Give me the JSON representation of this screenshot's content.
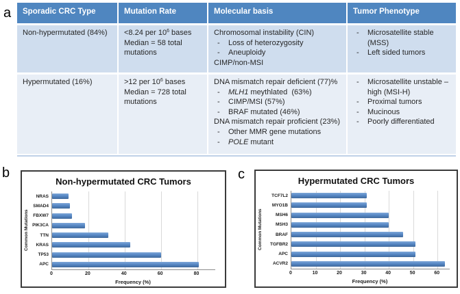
{
  "panels": {
    "a": "a",
    "b": "b",
    "c": "c"
  },
  "colors": {
    "table_header_bg": "#4f86c0",
    "table_header_text": "#ffffff",
    "table_row1_bg": "#cfddee",
    "table_row2_bg": "#e8eef6",
    "bar_blue": "#5586c3"
  },
  "table": {
    "bullet_char": "-",
    "headers": [
      "Sporadic CRC Type",
      "Mutation Rate",
      "Molecular basis",
      "Tumor Phenotype"
    ],
    "rows": [
      {
        "cells": [
          {
            "lines": [
              {
                "segs": [
                  {
                    "t": "Non-hypermutated (84%)"
                  }
                ]
              }
            ]
          },
          {
            "lines": [
              {
                "segs": [
                  {
                    "t": "<8.24 per 10"
                  },
                  {
                    "t": "6",
                    "sup": true
                  },
                  {
                    "t": " bases"
                  }
                ]
              },
              {
                "segs": [
                  {
                    "t": "Median = 58 total mutations"
                  }
                ]
              }
            ]
          },
          {
            "lines": [
              {
                "segs": [
                  {
                    "t": "Chromosomal instability (CIN)"
                  }
                ]
              },
              {
                "bullet": true,
                "segs": [
                  {
                    "t": "Loss of heterozygosity"
                  }
                ]
              },
              {
                "bullet": true,
                "segs": [
                  {
                    "t": "Aneuploidy"
                  }
                ]
              },
              {
                "segs": [
                  {
                    "t": "CIMP/non-MSI"
                  }
                ]
              }
            ]
          },
          {
            "lines": [
              {
                "bullet": true,
                "segs": [
                  {
                    "t": "Microsatellite stable (MSS)"
                  }
                ]
              },
              {
                "bullet": true,
                "segs": [
                  {
                    "t": "Left sided tumors"
                  }
                ]
              }
            ]
          }
        ]
      },
      {
        "cells": [
          {
            "lines": [
              {
                "segs": [
                  {
                    "t": "Hypermutated (16%)"
                  }
                ]
              }
            ]
          },
          {
            "lines": [
              {
                "segs": [
                  {
                    "t": ">12 per 10"
                  },
                  {
                    "t": "6",
                    "sup": true
                  },
                  {
                    "t": " bases"
                  }
                ]
              },
              {
                "segs": [
                  {
                    "t": "Median = 728 total mutations"
                  }
                ]
              }
            ]
          },
          {
            "lines": [
              {
                "segs": [
                  {
                    "t": "DNA mismatch repair deficient (77)%"
                  }
                ]
              },
              {
                "bullet": true,
                "segs": [
                  {
                    "t": "MLH1",
                    "i": true
                  },
                  {
                    "t": " meythlated  (63%)"
                  }
                ]
              },
              {
                "bullet": true,
                "segs": [
                  {
                    "t": "CIMP/MSI (57%)"
                  }
                ]
              },
              {
                "bullet": true,
                "segs": [
                  {
                    "t": "BRAF mutated (46%)"
                  }
                ]
              },
              {
                "segs": [
                  {
                    "t": "DNA mismatch repair proficient (23%)"
                  }
                ]
              },
              {
                "bullet": true,
                "segs": [
                  {
                    "t": "Other MMR gene mutations"
                  }
                ]
              },
              {
                "bullet": true,
                "segs": [
                  {
                    "t": "POLE",
                    "i": true
                  },
                  {
                    "t": " mutant"
                  }
                ]
              }
            ]
          },
          {
            "lines": [
              {
                "bullet": true,
                "segs": [
                  {
                    "t": "Microsatellite unstable – high (MSI-H)"
                  }
                ]
              },
              {
                "bullet": true,
                "segs": [
                  {
                    "t": "Proximal tumors"
                  }
                ]
              },
              {
                "bullet": true,
                "segs": [
                  {
                    "t": "Mucinous"
                  }
                ]
              },
              {
                "bullet": true,
                "segs": [
                  {
                    "t": "Poorly differentiated"
                  }
                ]
              }
            ]
          }
        ]
      }
    ]
  },
  "chart_data": [
    {
      "type": "bar",
      "orientation": "horizontal",
      "title": "Non-hypermutated CRC Tumors",
      "xlabel": "Frequency (%)",
      "ylabel": "Common Mutations",
      "categories": [
        "NRAS",
        "SMAD4",
        "FBXW7",
        "PIK3CA",
        "TTN",
        "KRAS",
        "TP53",
        "APC"
      ],
      "values": [
        9,
        10,
        11,
        18,
        31,
        43,
        60,
        81
      ],
      "xlim": [
        0,
        90
      ],
      "xticks": [
        0,
        20,
        40,
        60,
        80
      ],
      "grid": true,
      "legend": false,
      "bar_gradient": [
        "#7da6d8",
        "#5586c3",
        "#41699c"
      ]
    },
    {
      "type": "bar",
      "orientation": "horizontal",
      "title": "Hypermutated CRC Tumors",
      "xlabel": "Frequency (%)",
      "ylabel": "Common Mutations",
      "categories": [
        "TCF7L2",
        "MYO1B",
        "MSH6",
        "MSH3",
        "BRAF",
        "TGFBR2",
        "APC",
        "ACVR2"
      ],
      "values": [
        31,
        31,
        40,
        40,
        46,
        51,
        51,
        63
      ],
      "xlim": [
        0,
        65
      ],
      "xticks": [
        0,
        10,
        20,
        30,
        40,
        50,
        60
      ],
      "grid": true,
      "legend": false,
      "bar_gradient": [
        "#7da6d8",
        "#5586c3",
        "#41699c"
      ]
    }
  ]
}
